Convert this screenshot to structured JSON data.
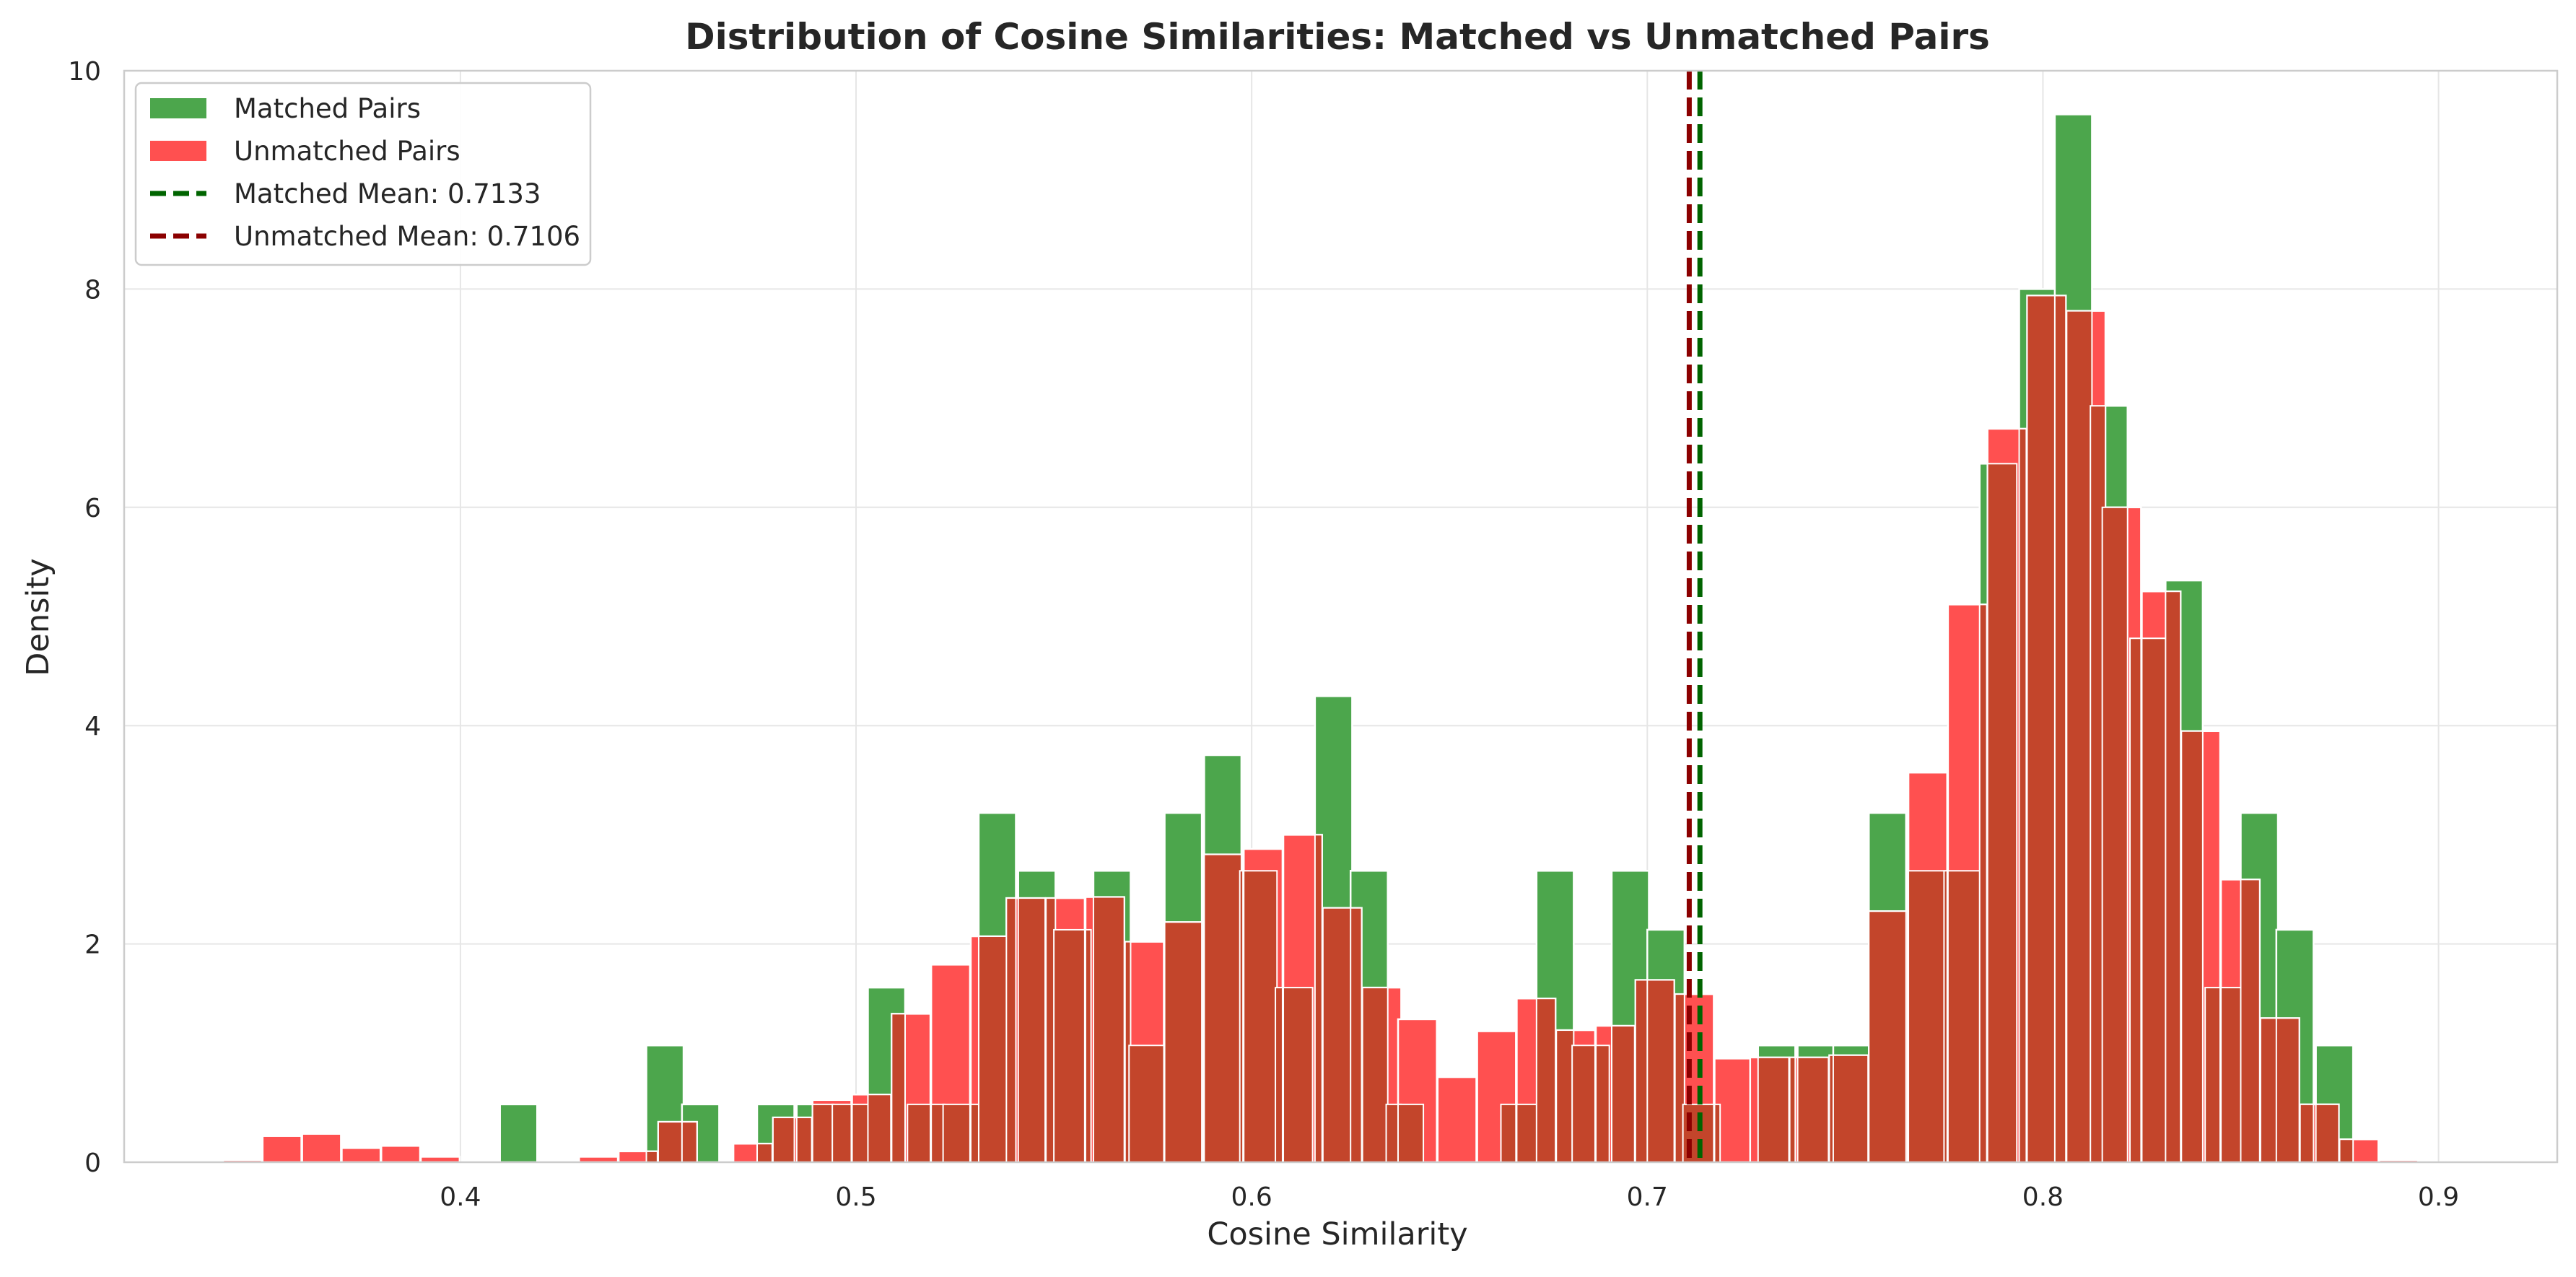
{
  "chart_data": {
    "type": "bar",
    "subtype": "histogram",
    "title": "Distribution of Cosine Similarities: Matched vs Unmatched Pairs",
    "xlabel": "Cosine Similarity",
    "ylabel": "Density",
    "xlim": [
      0.315,
      0.93
    ],
    "ylim": [
      0,
      10
    ],
    "xticks": [
      "0.4",
      "0.5",
      "0.6",
      "0.7",
      "0.8",
      "0.9"
    ],
    "yticks": [
      "0",
      "2",
      "4",
      "6",
      "8",
      "10"
    ],
    "grid": true,
    "legend_position": "top-left",
    "colors": {
      "matched": "#4CA64C",
      "unmatched": "#FF5050",
      "overlap": "#C3452B",
      "matched_mean": "#006400",
      "unmatched_mean": "#8B0000",
      "grid": "#E6E6E6",
      "spine": "#CCCCCC"
    },
    "series": [
      {
        "name": "Matched Pairs",
        "bin_width": 0.0094,
        "bins": [
          [
            0.41,
            0.53
          ],
          [
            0.447,
            1.07
          ],
          [
            0.456,
            0.53
          ],
          [
            0.475,
            0.53
          ],
          [
            0.485,
            0.53
          ],
          [
            0.494,
            0.53
          ],
          [
            0.503,
            1.6
          ],
          [
            0.513,
            0.53
          ],
          [
            0.522,
            0.53
          ],
          [
            0.531,
            3.2
          ],
          [
            0.541,
            2.67
          ],
          [
            0.55,
            2.13
          ],
          [
            0.56,
            2.67
          ],
          [
            0.569,
            1.07
          ],
          [
            0.578,
            3.2
          ],
          [
            0.588,
            3.73
          ],
          [
            0.597,
            2.67
          ],
          [
            0.606,
            1.6
          ],
          [
            0.616,
            4.27
          ],
          [
            0.625,
            2.67
          ],
          [
            0.634,
            0.53
          ],
          [
            0.663,
            0.53
          ],
          [
            0.672,
            2.67
          ],
          [
            0.681,
            1.07
          ],
          [
            0.691,
            2.67
          ],
          [
            0.7,
            2.13
          ],
          [
            0.709,
            0.53
          ],
          [
            0.728,
            1.07
          ],
          [
            0.738,
            1.07
          ],
          [
            0.747,
            1.07
          ],
          [
            0.756,
            3.2
          ],
          [
            0.766,
            2.67
          ],
          [
            0.775,
            2.67
          ],
          [
            0.784,
            6.4
          ],
          [
            0.794,
            8.0
          ],
          [
            0.803,
            9.6
          ],
          [
            0.812,
            6.93
          ],
          [
            0.822,
            4.8
          ],
          [
            0.831,
            5.33
          ],
          [
            0.841,
            1.6
          ],
          [
            0.85,
            3.2
          ],
          [
            0.859,
            2.13
          ],
          [
            0.869,
            1.07
          ]
        ]
      },
      {
        "name": "Unmatched Pairs",
        "bin_width": 0.0098,
        "bins": [
          [
            0.34,
            0.02
          ],
          [
            0.35,
            0.24
          ],
          [
            0.36,
            0.26
          ],
          [
            0.37,
            0.13
          ],
          [
            0.38,
            0.15
          ],
          [
            0.39,
            0.05
          ],
          [
            0.43,
            0.05
          ],
          [
            0.44,
            0.1
          ],
          [
            0.45,
            0.37
          ],
          [
            0.46,
            0.0
          ],
          [
            0.469,
            0.17
          ],
          [
            0.479,
            0.41
          ],
          [
            0.489,
            0.57
          ],
          [
            0.499,
            0.62
          ],
          [
            0.509,
            1.36
          ],
          [
            0.519,
            1.81
          ],
          [
            0.529,
            2.07
          ],
          [
            0.538,
            2.42
          ],
          [
            0.548,
            2.42
          ],
          [
            0.558,
            2.43
          ],
          [
            0.568,
            2.02
          ],
          [
            0.578,
            2.2
          ],
          [
            0.588,
            2.82
          ],
          [
            0.598,
            2.87
          ],
          [
            0.608,
            3.0
          ],
          [
            0.618,
            2.33
          ],
          [
            0.628,
            1.6
          ],
          [
            0.637,
            1.31
          ],
          [
            0.647,
            0.78
          ],
          [
            0.657,
            1.2
          ],
          [
            0.667,
            1.5
          ],
          [
            0.677,
            1.21
          ],
          [
            0.687,
            1.25
          ],
          [
            0.697,
            1.67
          ],
          [
            0.707,
            1.54
          ],
          [
            0.717,
            0.95
          ],
          [
            0.726,
            0.96
          ],
          [
            0.736,
            0.96
          ],
          [
            0.746,
            0.98
          ],
          [
            0.756,
            2.3
          ],
          [
            0.766,
            3.57
          ],
          [
            0.776,
            5.11
          ],
          [
            0.786,
            6.72
          ],
          [
            0.796,
            7.94
          ],
          [
            0.806,
            7.8
          ],
          [
            0.815,
            6.0
          ],
          [
            0.825,
            5.23
          ],
          [
            0.835,
            3.95
          ],
          [
            0.845,
            2.59
          ],
          [
            0.855,
            1.32
          ],
          [
            0.865,
            0.53
          ],
          [
            0.875,
            0.21
          ],
          [
            0.885,
            0.02
          ]
        ]
      }
    ],
    "mean_lines": [
      {
        "name": "Matched Mean: 0.7133",
        "x": 0.7133
      },
      {
        "name": "Unmatched Mean: 0.7106",
        "x": 0.7106
      }
    ],
    "legend": [
      "Matched Pairs",
      "Unmatched Pairs",
      "Matched Mean: 0.7133",
      "Unmatched Mean: 0.7106"
    ]
  }
}
